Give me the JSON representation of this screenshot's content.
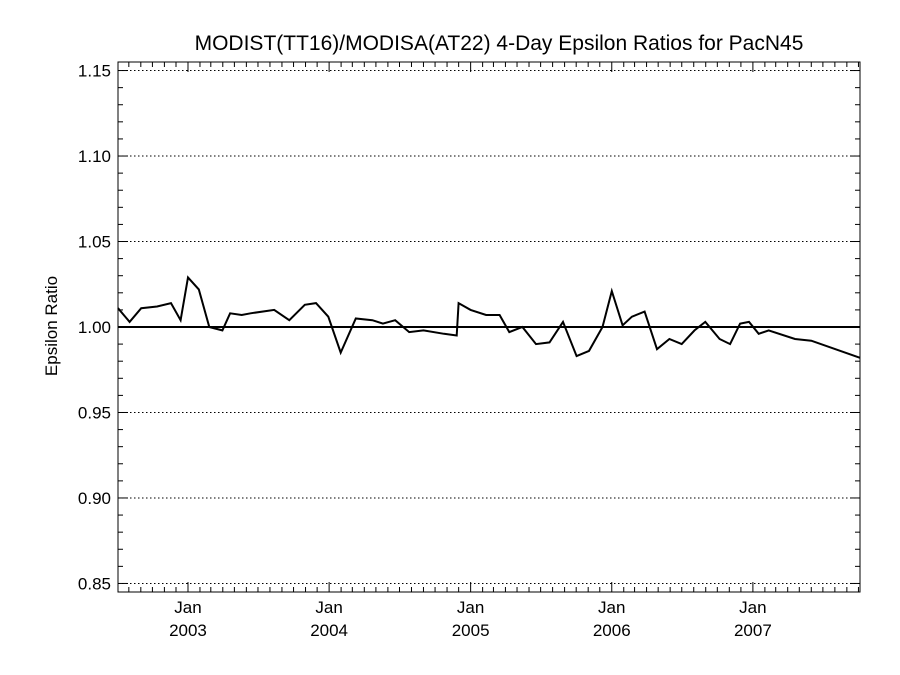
{
  "chart_data": {
    "type": "line",
    "title": "MODIST(TT16)/MODISA(AT22) 4-Day Epsilon Ratios for PacN45",
    "ylabel": "Epsilon Ratio",
    "xlabel": "",
    "xlim": [
      "2002-07-04",
      "2007-10-05"
    ],
    "ylim": [
      0.845,
      1.155
    ],
    "y_ticks": [
      {
        "value": 0.85,
        "label": "0.85"
      },
      {
        "value": 0.9,
        "label": "0.90"
      },
      {
        "value": 0.95,
        "label": "0.95"
      },
      {
        "value": 1.0,
        "label": "1.00"
      },
      {
        "value": 1.05,
        "label": "1.05"
      },
      {
        "value": 1.1,
        "label": "1.10"
      },
      {
        "value": 1.15,
        "label": "1.15"
      }
    ],
    "x_ticks": [
      {
        "date": "2003-01-01",
        "month": "Jan",
        "year": "2003"
      },
      {
        "date": "2004-01-01",
        "month": "Jan",
        "year": "2004"
      },
      {
        "date": "2005-01-01",
        "month": "Jan",
        "year": "2005"
      },
      {
        "date": "2006-01-01",
        "month": "Jan",
        "year": "2006"
      },
      {
        "date": "2007-01-01",
        "month": "Jan",
        "year": "2007"
      }
    ],
    "grid": "horizontal dotted at major y ticks",
    "reference_line": 1.0,
    "series": [
      {
        "color": "#000000",
        "x": [
          "2002-07-04",
          "2002-08-03",
          "2002-09-02",
          "2002-10-13",
          "2002-11-18",
          "2002-12-13",
          "2003-01-01",
          "2003-01-29",
          "2003-02-25",
          "2003-03-31",
          "2003-04-20",
          "2003-05-20",
          "2003-06-12",
          "2003-08-12",
          "2003-09-20",
          "2003-10-30",
          "2003-11-28",
          "2003-12-30",
          "2004-01-31",
          "2004-03-10",
          "2004-04-22",
          "2004-05-19",
          "2004-06-20",
          "2004-07-26",
          "2004-09-01",
          "2004-10-24",
          "2004-11-26",
          "2004-12-01",
          "2005-01-01",
          "2005-02-10",
          "2005-03-17",
          "2005-04-11",
          "2005-05-15",
          "2005-06-19",
          "2005-07-24",
          "2005-08-28",
          "2005-10-02",
          "2005-11-03",
          "2005-12-08",
          "2006-01-01",
          "2006-01-29",
          "2006-02-22",
          "2006-03-27",
          "2006-04-28",
          "2006-05-30",
          "2006-07-01",
          "2006-08-03",
          "2006-08-31",
          "2006-10-07",
          "2006-11-03",
          "2006-11-29",
          "2006-12-22",
          "2007-01-16",
          "2007-02-11",
          "2007-04-20",
          "2007-06-01",
          "2007-10-05"
        ],
        "y": [
          1.011,
          1.003,
          1.011,
          1.012,
          1.014,
          1.004,
          1.029,
          1.022,
          1.0,
          0.998,
          1.008,
          1.007,
          1.008,
          1.01,
          1.004,
          1.013,
          1.014,
          1.006,
          0.985,
          1.005,
          1.004,
          1.002,
          1.004,
          0.997,
          0.998,
          0.996,
          0.995,
          1.014,
          1.01,
          1.007,
          1.007,
          0.997,
          1.0,
          0.99,
          0.991,
          1.003,
          0.983,
          0.986,
          1.0,
          1.021,
          1.001,
          1.006,
          1.009,
          0.987,
          0.993,
          0.99,
          0.998,
          1.003,
          0.993,
          0.99,
          1.002,
          1.003,
          0.996,
          0.998,
          0.993,
          0.992,
          0.982
        ]
      }
    ]
  }
}
